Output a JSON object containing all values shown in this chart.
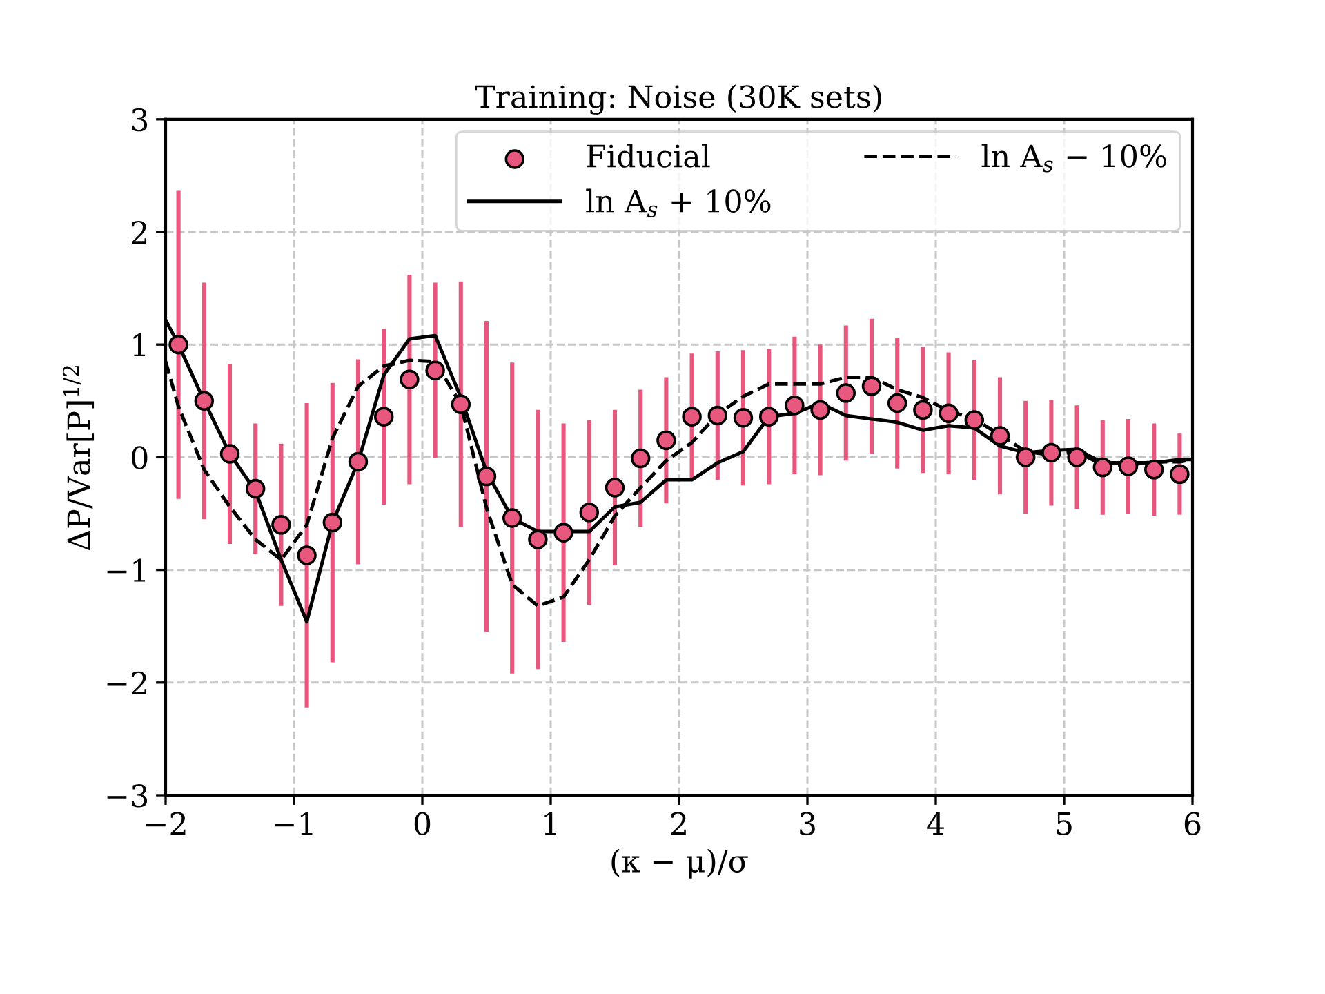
{
  "chart_data": {
    "type": "scatter",
    "title": "Training: Noise (30K sets)",
    "xlabel": "(κ − μ)/σ",
    "ylabel": "ΔP/Var[P]$^{1/2}$",
    "xlim": [
      -2,
      6
    ],
    "ylim": [
      -3,
      3
    ],
    "xticks": [
      -2,
      -1,
      0,
      1,
      2,
      3,
      4,
      5,
      6
    ],
    "yticks": [
      -3,
      -2,
      -1,
      0,
      1,
      2,
      3
    ],
    "grid": true,
    "legend": "top right",
    "series": [
      {
        "name": "Fiducial",
        "color": "#e8577e",
        "marker": "circle",
        "x": [
          -1.9,
          -1.7,
          -1.5,
          -1.3,
          -1.1,
          -0.9,
          -0.7,
          -0.5,
          -0.3,
          -0.1,
          0.1,
          0.3,
          0.5,
          0.7,
          0.9,
          1.1,
          1.3,
          1.5,
          1.7,
          1.9,
          2.1,
          2.3,
          2.5,
          2.7,
          2.9,
          3.1,
          3.3,
          3.5,
          3.7,
          3.9,
          4.1,
          4.3,
          4.5,
          4.7,
          4.9,
          5.1,
          5.3,
          5.5,
          5.7,
          5.9
        ],
        "values": [
          1.0,
          0.5,
          0.03,
          -0.28,
          -0.6,
          -0.87,
          -0.58,
          -0.04,
          0.36,
          0.69,
          0.77,
          0.47,
          -0.17,
          -0.54,
          -0.73,
          -0.67,
          -0.49,
          -0.27,
          -0.01,
          0.15,
          0.36,
          0.37,
          0.35,
          0.36,
          0.46,
          0.42,
          0.57,
          0.63,
          0.48,
          0.42,
          0.39,
          0.33,
          0.19,
          0.0,
          0.04,
          0.0,
          -0.09,
          -0.08,
          -0.11,
          -0.15
        ],
        "errors": [
          1.37,
          1.05,
          0.8,
          0.58,
          0.72,
          1.35,
          1.24,
          0.91,
          0.78,
          0.93,
          0.78,
          1.09,
          1.38,
          1.38,
          1.15,
          0.97,
          0.82,
          0.69,
          0.61,
          0.56,
          0.56,
          0.57,
          0.6,
          0.6,
          0.61,
          0.58,
          0.6,
          0.6,
          0.58,
          0.56,
          0.54,
          0.53,
          0.52,
          0.5,
          0.47,
          0.46,
          0.42,
          0.42,
          0.41,
          0.36
        ]
      },
      {
        "name": "ln A$_{s}$ + 10%",
        "type": "line",
        "color": "#000000",
        "line_style": "solid",
        "x": [
          -2.0,
          -1.9,
          -1.7,
          -1.5,
          -1.3,
          -1.1,
          -0.9,
          -0.7,
          -0.5,
          -0.3,
          -0.1,
          0.1,
          0.3,
          0.5,
          0.7,
          0.9,
          1.1,
          1.3,
          1.5,
          1.7,
          1.9,
          2.1,
          2.3,
          2.5,
          2.7,
          2.9,
          3.1,
          3.3,
          3.5,
          3.7,
          3.9,
          4.1,
          4.3,
          4.5,
          4.7,
          4.9,
          5.1,
          5.3,
          5.5,
          5.7,
          5.9,
          6.0
        ],
        "values": [
          1.22,
          1.0,
          0.5,
          0.03,
          -0.3,
          -0.91,
          -1.46,
          -0.58,
          -0.04,
          0.73,
          1.05,
          1.08,
          0.53,
          -0.13,
          -0.54,
          -0.66,
          -0.66,
          -0.66,
          -0.44,
          -0.4,
          -0.2,
          -0.2,
          -0.05,
          0.05,
          0.36,
          0.39,
          0.48,
          0.37,
          0.34,
          0.31,
          0.24,
          0.28,
          0.26,
          0.1,
          0.04,
          0.06,
          0.07,
          -0.05,
          -0.05,
          -0.05,
          -0.02,
          -0.02
        ]
      },
      {
        "name": "ln A$_{s}$ − 10%",
        "type": "line",
        "color": "#000000",
        "line_style": "dashed",
        "x": [
          -2.0,
          -1.9,
          -1.7,
          -1.5,
          -1.3,
          -1.1,
          -0.9,
          -0.7,
          -0.5,
          -0.3,
          -0.1,
          0.1,
          0.3,
          0.5,
          0.7,
          0.9,
          1.1,
          1.3,
          1.5,
          1.7,
          1.9,
          2.1,
          2.3,
          2.5,
          2.7,
          2.9,
          3.1,
          3.3,
          3.5,
          3.7,
          3.9,
          4.1,
          4.3,
          4.5,
          4.7,
          4.9,
          5.1,
          5.3,
          5.5,
          5.7,
          5.9,
          6.0
        ],
        "values": [
          0.85,
          0.45,
          -0.11,
          -0.44,
          -0.73,
          -0.91,
          -0.6,
          0.17,
          0.63,
          0.81,
          0.86,
          0.85,
          0.47,
          -0.45,
          -1.13,
          -1.32,
          -1.24,
          -0.91,
          -0.52,
          -0.27,
          -0.03,
          0.13,
          0.38,
          0.54,
          0.65,
          0.65,
          0.65,
          0.71,
          0.71,
          0.6,
          0.53,
          0.41,
          0.34,
          0.2,
          0.05,
          0.02,
          0.05,
          -0.07,
          -0.07,
          -0.04,
          -0.04,
          -0.02
        ]
      }
    ]
  }
}
